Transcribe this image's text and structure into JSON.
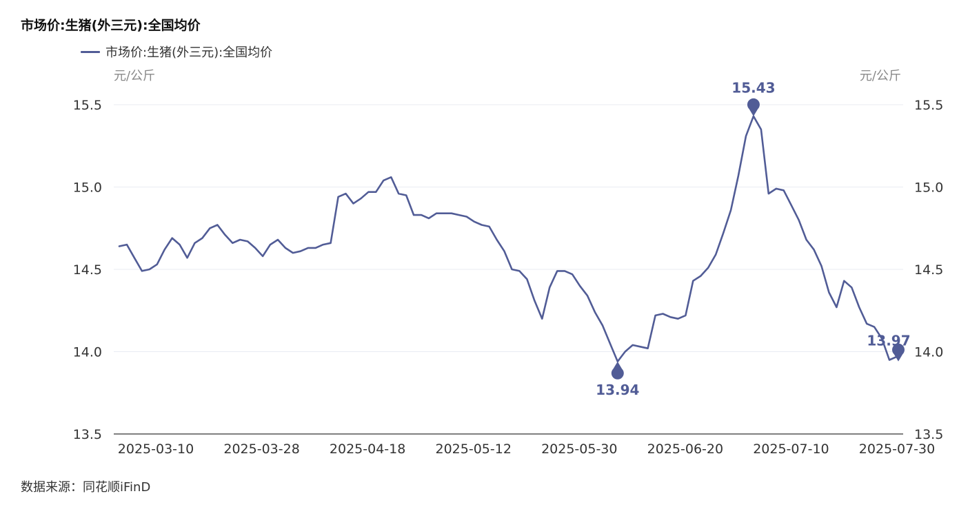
{
  "title": "市场价:生猪(外三元):全国均价",
  "source": "数据来源：同花顺iFinD",
  "colors": {
    "series": "#515c96",
    "grid": "#e8ebf2",
    "axis": "#333333"
  },
  "chart_data": {
    "type": "line",
    "title": "市场价:生猪(外三元):全国均价",
    "ylabel_left": "元/公斤",
    "ylabel_right": "元/公斤",
    "ylim": [
      13.5,
      15.5
    ],
    "yticks": [
      "13.5",
      "14.0",
      "14.5",
      "15.0",
      "15.5"
    ],
    "xtick_labels": [
      "2025-03-10",
      "2025-03-28",
      "2025-04-18",
      "2025-05-12",
      "2025-05-30",
      "2025-06-20",
      "2025-07-10",
      "2025-07-30"
    ],
    "grid": true,
    "legend_position": "top-left",
    "series": [
      {
        "name": "市场价:生猪(外三元):全国均价",
        "color": "#515c96",
        "values": [
          14.64,
          14.65,
          14.57,
          14.49,
          14.5,
          14.53,
          14.62,
          14.69,
          14.65,
          14.57,
          14.66,
          14.69,
          14.75,
          14.77,
          14.71,
          14.66,
          14.68,
          14.67,
          14.63,
          14.58,
          14.65,
          14.68,
          14.63,
          14.6,
          14.61,
          14.63,
          14.63,
          14.65,
          14.66,
          14.94,
          14.96,
          14.9,
          14.93,
          14.97,
          14.97,
          15.04,
          15.06,
          14.96,
          14.95,
          14.83,
          14.83,
          14.81,
          14.84,
          14.84,
          14.84,
          14.83,
          14.82,
          14.79,
          14.77,
          14.76,
          14.68,
          14.61,
          14.5,
          14.49,
          14.44,
          14.31,
          14.2,
          14.39,
          14.49,
          14.49,
          14.47,
          14.4,
          14.34,
          14.24,
          14.16,
          14.05,
          13.94,
          14.0,
          14.04,
          14.03,
          14.02,
          14.22,
          14.23,
          14.21,
          14.2,
          14.22,
          14.43,
          14.46,
          14.51,
          14.59,
          14.72,
          14.86,
          15.07,
          15.31,
          15.43,
          15.35,
          14.96,
          14.99,
          14.98,
          14.89,
          14.8,
          14.68,
          14.62,
          14.52,
          14.36,
          14.27,
          14.43,
          14.39,
          14.27,
          14.17,
          14.15,
          14.08,
          13.95,
          13.97
        ],
        "annotations": [
          {
            "type": "max",
            "label": "15.43",
            "value": 15.43
          },
          {
            "type": "min",
            "label": "13.94",
            "value": 13.94
          },
          {
            "type": "last",
            "label": "13.97",
            "value": 13.97
          }
        ]
      }
    ]
  }
}
